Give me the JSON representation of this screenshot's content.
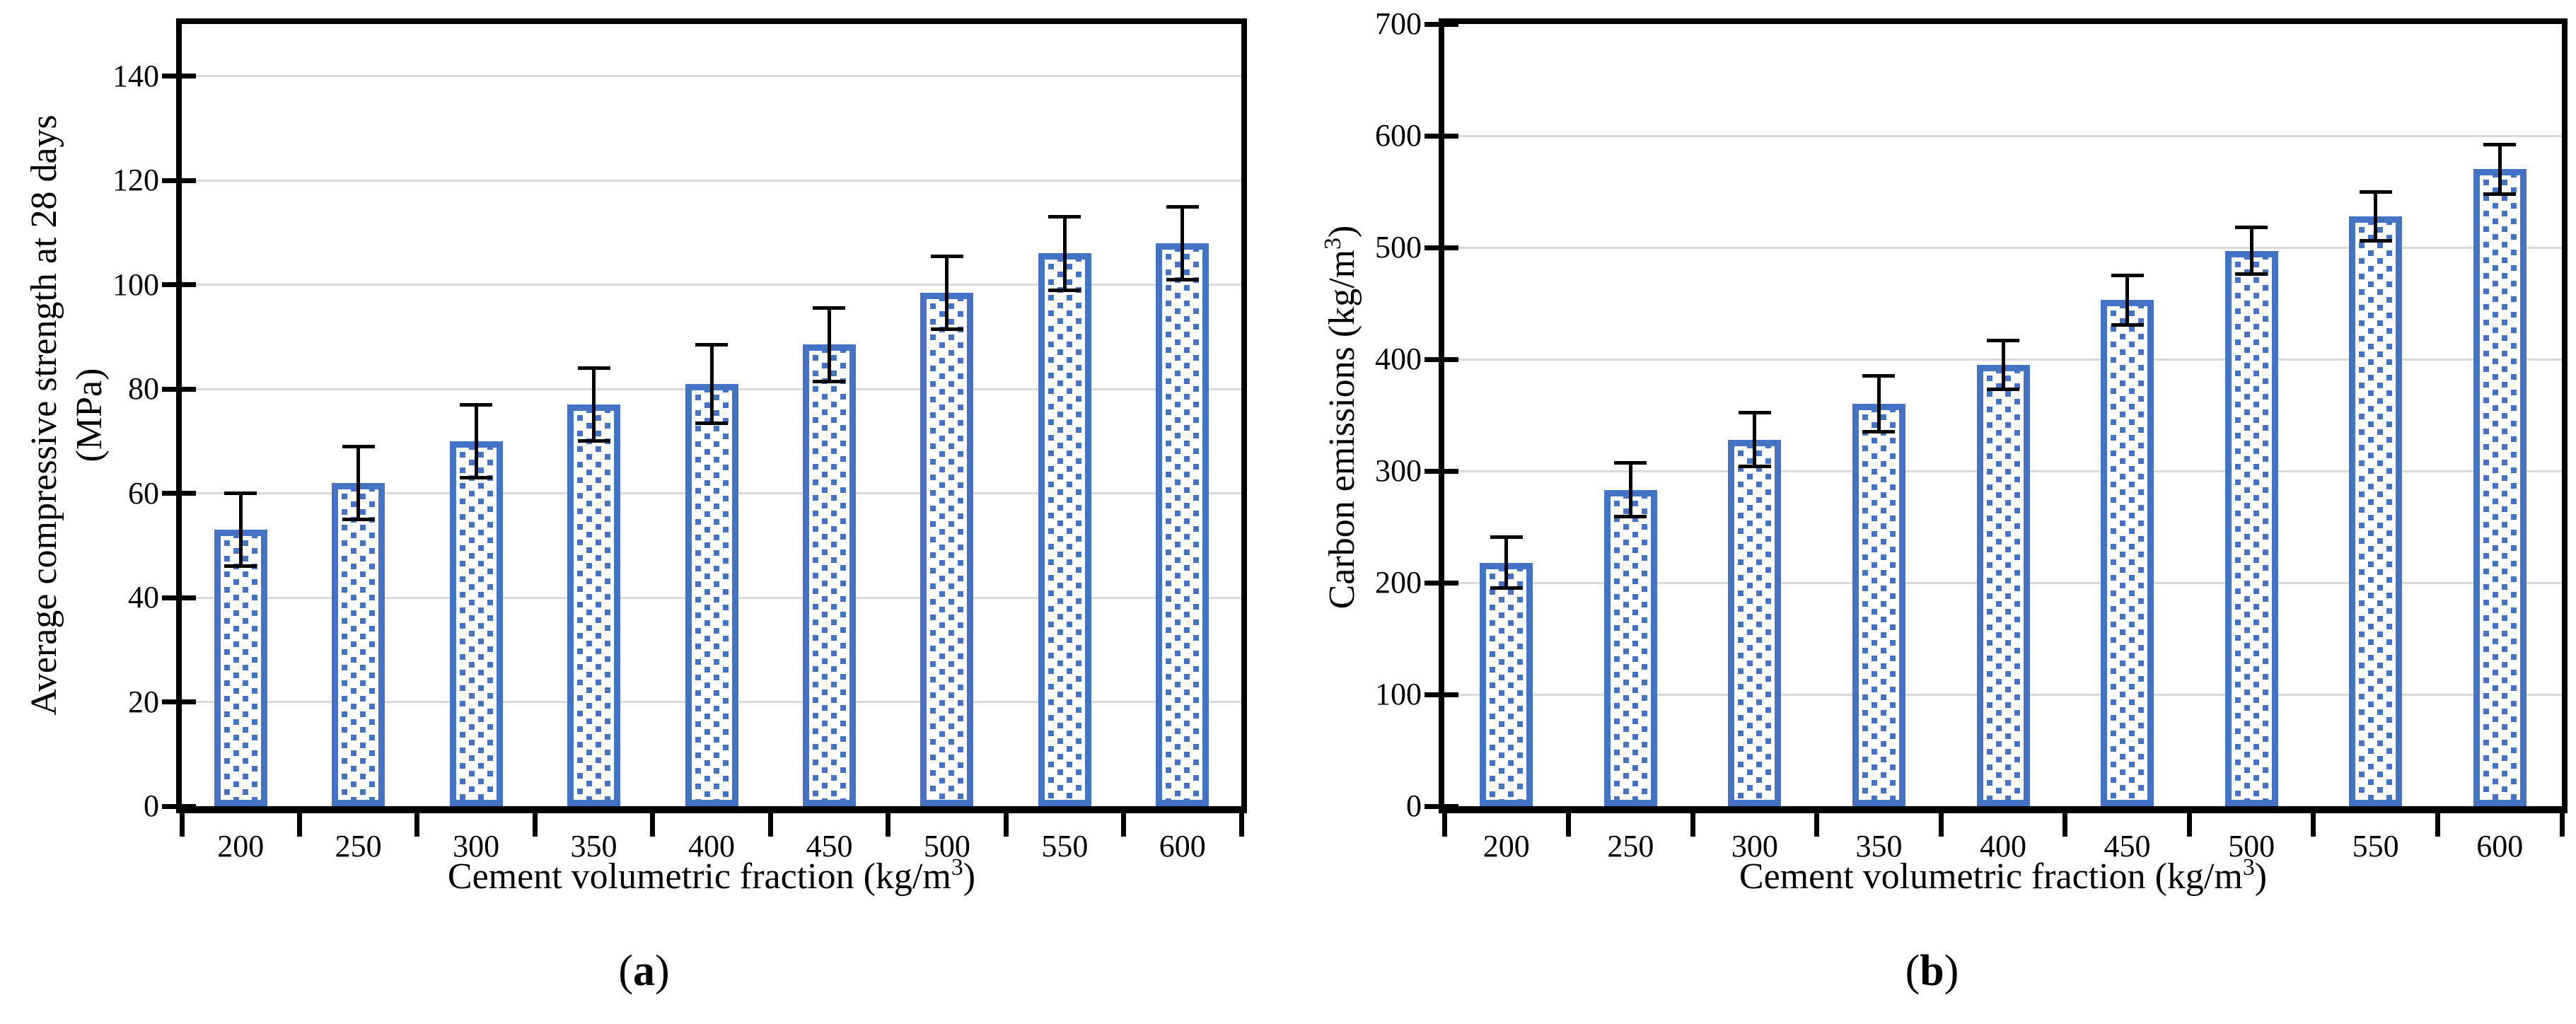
{
  "figure": {
    "colors": {
      "bar_outline": "#4472C4",
      "bar_pattern_dot": "#4472C4",
      "bar_fill": "#FFFFFF",
      "gridline": "#D9D9D9",
      "axis": "#000000",
      "error_bar": "#000000"
    },
    "panels": [
      {
        "label_open": "(",
        "label_letter": "a",
        "label_close": ")",
        "y_title_line1": "Average compressive strength at 28 days",
        "y_title_line2": "(MPa)",
        "x_title_main": "Cement volumetric fraction (kg/m",
        "x_title_sup": "3",
        "x_title_close": ")"
      },
      {
        "label_open": "(",
        "label_letter": "b",
        "label_close": ")",
        "y_title_main": "Carbon emissions (kg/m",
        "y_title_sup": "3",
        "y_title_close": ")",
        "x_title_main": "Cement volumetric fraction (kg/m",
        "x_title_sup": "3",
        "x_title_close": ")"
      }
    ]
  },
  "chart_data": [
    {
      "type": "bar",
      "title": "",
      "categories": [
        "200",
        "250",
        "300",
        "350",
        "400",
        "450",
        "500",
        "550",
        "600"
      ],
      "series": [
        {
          "name": "Average compressive strength at 28 days (MPa)",
          "values": [
            53,
            62,
            70,
            77,
            81,
            88.5,
            98.5,
            106,
            108
          ],
          "errors": [
            7,
            7,
            7,
            7,
            7.5,
            7,
            7,
            7,
            7
          ]
        }
      ],
      "xlabel": "Cement volumetric fraction (kg/m³)",
      "ylabel": "Average compressive strength at 28 days (MPa)",
      "ylim": [
        0,
        150
      ],
      "yticks": [
        0,
        20,
        40,
        60,
        80,
        100,
        120,
        140
      ],
      "grid": true,
      "legend": "none",
      "error_bars": true,
      "bar_pattern": "blue dotted squares with solid blue outline"
    },
    {
      "type": "bar",
      "title": "",
      "categories": [
        "200",
        "250",
        "300",
        "350",
        "400",
        "450",
        "500",
        "550",
        "600"
      ],
      "series": [
        {
          "name": "Carbon emissions (kg/m³)",
          "values": [
            218,
            283,
            328,
            360,
            395,
            453,
            497,
            528,
            570
          ],
          "errors": [
            23,
            24,
            24,
            25,
            22,
            22,
            21,
            22,
            22
          ]
        }
      ],
      "xlabel": "Cement volumetric fraction (kg/m³)",
      "ylabel": "Carbon emissions (kg/m³)",
      "ylim": [
        0,
        700
      ],
      "yticks": [
        0,
        100,
        200,
        300,
        400,
        500,
        600,
        700
      ],
      "grid": true,
      "legend": "none",
      "error_bars": true,
      "bar_pattern": "blue dotted squares with solid blue outline"
    }
  ]
}
